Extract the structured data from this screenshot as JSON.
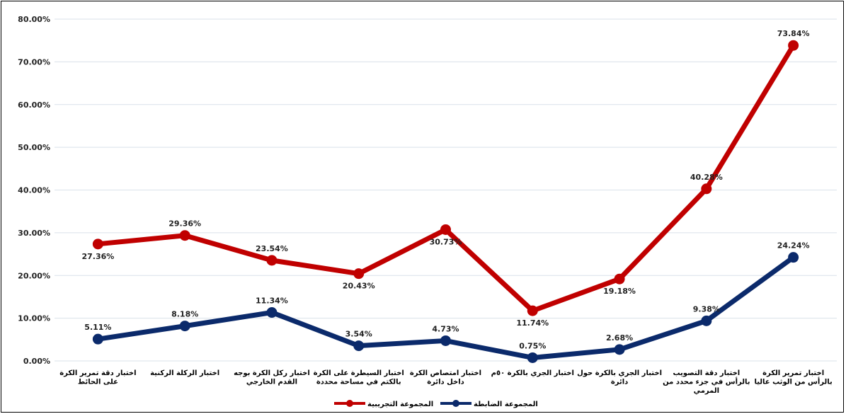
{
  "chart_data": {
    "type": "line",
    "categories": [
      [
        "اختبار دقة تمرير الكرة",
        "على الحائط"
      ],
      [
        "اختبار الركلة الركنية"
      ],
      [
        "اختبار ركل الكرة بوجه",
        "القدم الخارجي"
      ],
      [
        "اختبار السيطرة على الكرة",
        "بالكتم في مساحة محددة"
      ],
      [
        "اختبار امتصاص الكرة",
        "داخل دائرة"
      ],
      [
        "اختبار الجري بالكرة ٥٠م"
      ],
      [
        "اختبار الجري بالكرة حول",
        "دائرة"
      ],
      [
        "اختبار دقة التصويب",
        "بالرأس في جزء محدد من",
        "المرمي"
      ],
      [
        "اختبار تمرير الكرة",
        "بالرأس من الوثب عاليا"
      ]
    ],
    "series": [
      {
        "name": "المجموعة التجريبية",
        "color": "#c00000",
        "values": [
          27.36,
          29.36,
          23.54,
          20.43,
          30.73,
          11.74,
          19.18,
          40.28,
          73.84
        ],
        "labels": [
          "27.36%",
          "29.36%",
          "23.54%",
          "20.43%",
          "30.73%",
          "11.74%",
          "19.18%",
          "40.28%",
          "73.84%"
        ],
        "label_pos": [
          "below",
          "above",
          "above",
          "below",
          "below",
          "below",
          "below",
          "above",
          "above"
        ]
      },
      {
        "name": "المجموعة الضابطة",
        "color": "#0b2a6b",
        "values": [
          5.11,
          8.18,
          11.34,
          3.54,
          4.73,
          0.75,
          2.68,
          9.38,
          24.24
        ],
        "labels": [
          "5.11%",
          "8.18%",
          "11.34%",
          "3.54%",
          "4.73%",
          "0.75%",
          "2.68%",
          "9.38%",
          "24.24%"
        ],
        "label_pos": [
          "above",
          "above",
          "above",
          "above",
          "above",
          "above",
          "above",
          "above",
          "above"
        ]
      }
    ],
    "y_ticks": [
      "0.00%",
      "10.00%",
      "20.00%",
      "30.00%",
      "40.00%",
      "50.00%",
      "60.00%",
      "70.00%",
      "80.00%"
    ],
    "ylim": [
      0,
      80
    ],
    "grid": true,
    "legend_position": "bottom"
  }
}
